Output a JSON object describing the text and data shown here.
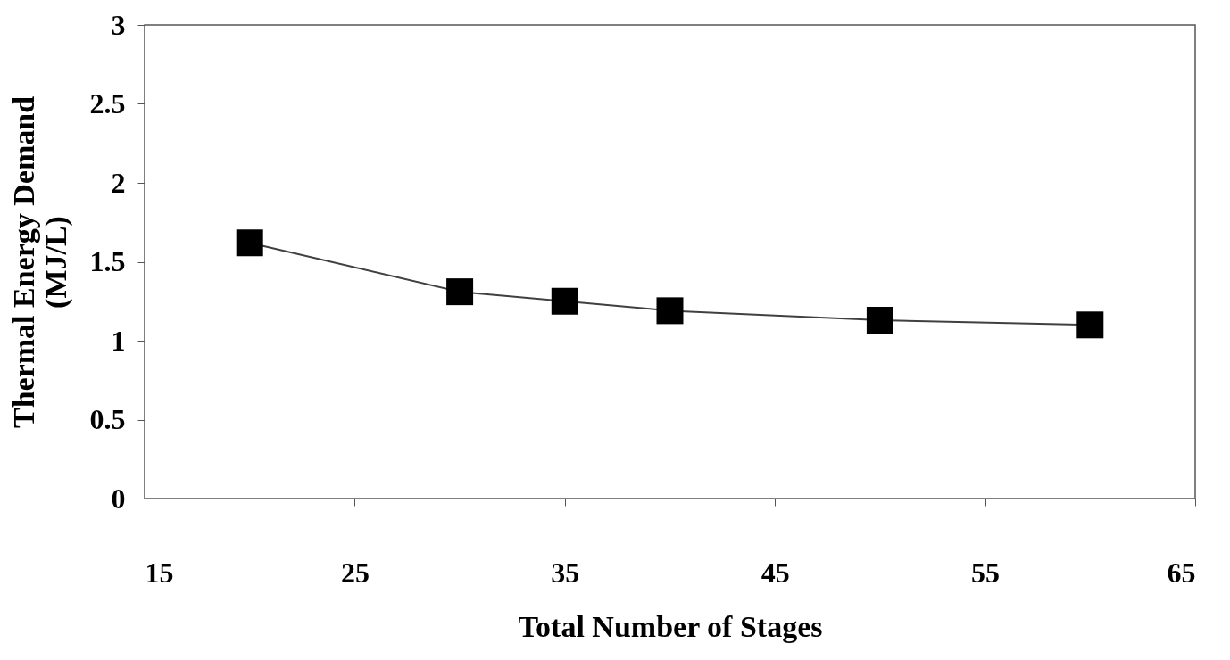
{
  "chart_data": {
    "type": "line",
    "xlabel": "Total Number of Stages",
    "ylabel": "Thermal Energy Demand (MJ/L)",
    "x": [
      20,
      30,
      35,
      40,
      50,
      60
    ],
    "series": [
      {
        "color": "#000000",
        "values": [
          1.62,
          1.31,
          1.25,
          1.19,
          1.13,
          1.1
        ]
      }
    ],
    "xlim": [
      15,
      65
    ],
    "xticks": [
      15,
      25,
      35,
      45,
      55,
      65
    ],
    "ylim": [
      0,
      3
    ],
    "yticks": [
      0,
      0.5,
      1,
      1.5,
      2,
      2.5,
      3
    ],
    "marker": "square",
    "line_style": "solid",
    "grid": false
  }
}
